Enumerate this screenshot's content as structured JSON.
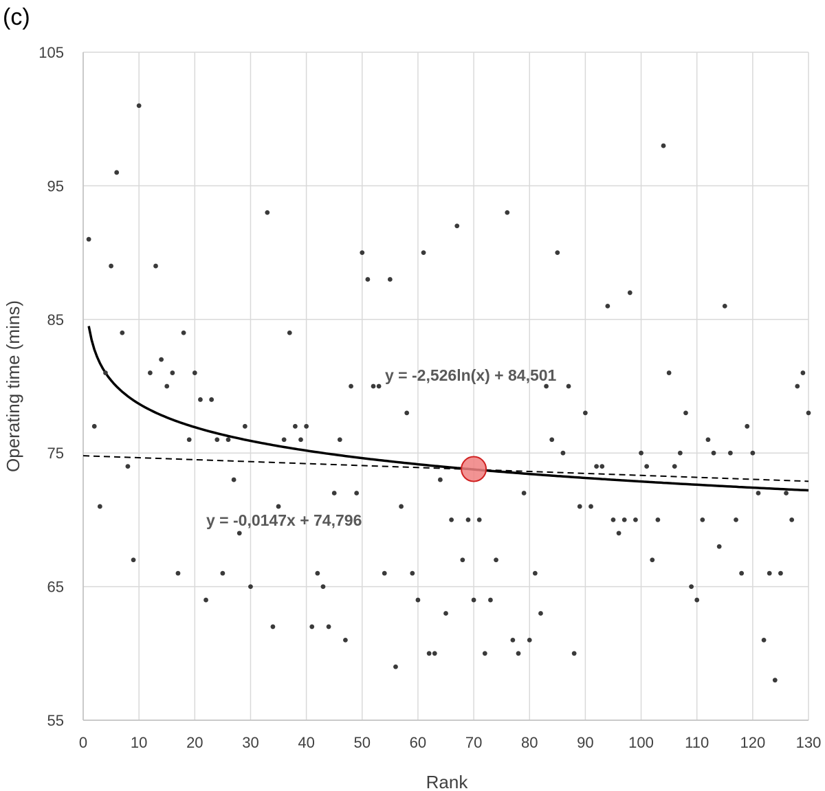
{
  "panel_label": "(c)",
  "chart_data": {
    "type": "scatter",
    "title": "",
    "xlabel": "Rank",
    "ylabel": "Operating time (mins)",
    "xlim": [
      0,
      130
    ],
    "ylim": [
      55,
      105
    ],
    "x_ticks": [
      0,
      10,
      20,
      30,
      40,
      50,
      60,
      70,
      80,
      90,
      100,
      110,
      120,
      130
    ],
    "y_ticks": [
      55,
      65,
      75,
      85,
      95,
      105
    ],
    "grid": true,
    "legend": "none",
    "colors": {
      "points": "#3a3a3a",
      "trend": "#000000",
      "highlight_fill": "#f08080",
      "highlight_stroke": "#d02020",
      "grid": "#d9d9d9"
    },
    "points": {
      "x": [
        1,
        2,
        3,
        4,
        5,
        6,
        7,
        8,
        9,
        10,
        12,
        13,
        14,
        15,
        16,
        17,
        18,
        19,
        20,
        21,
        22,
        23,
        24,
        25,
        26,
        27,
        28,
        29,
        30,
        33,
        34,
        35,
        36,
        37,
        38,
        39,
        40,
        41,
        42,
        43,
        44,
        45,
        46,
        47,
        48,
        49,
        50,
        51,
        52,
        53,
        54,
        55,
        56,
        57,
        58,
        59,
        60,
        61,
        62,
        63,
        64,
        65,
        66,
        67,
        68,
        69,
        70,
        71,
        72,
        73,
        74,
        76,
        77,
        78,
        79,
        80,
        81,
        82,
        83,
        84,
        85,
        86,
        87,
        88,
        89,
        90,
        91,
        92,
        93,
        94,
        95,
        96,
        97,
        98,
        99,
        100,
        101,
        102,
        103,
        104,
        105,
        106,
        107,
        108,
        109,
        110,
        111,
        112,
        113,
        114,
        115,
        116,
        117,
        118,
        119,
        120,
        121,
        122,
        123,
        124,
        125,
        126,
        127,
        128,
        129,
        130
      ],
      "y": [
        91,
        77,
        71,
        81,
        89,
        96,
        84,
        74,
        67,
        101,
        81,
        89,
        82,
        80,
        81,
        66,
        84,
        76,
        81,
        79,
        64,
        79,
        76,
        66,
        76,
        73,
        69,
        77,
        65,
        93,
        62,
        71,
        76,
        84,
        77,
        76,
        77,
        62,
        66,
        65,
        62,
        72,
        76,
        61,
        80,
        72,
        90,
        88,
        80,
        80,
        66,
        88,
        59,
        71,
        78,
        66,
        64,
        90,
        60,
        60,
        73,
        63,
        70,
        92,
        67,
        70,
        64,
        70,
        60,
        64,
        67,
        93,
        61,
        60,
        72,
        61,
        66,
        63,
        80,
        76,
        90,
        75,
        80,
        60,
        71,
        78,
        71,
        74,
        74,
        86,
        70,
        69,
        70,
        87,
        70,
        75,
        74,
        67,
        70,
        98,
        81,
        74,
        75,
        78,
        65,
        64,
        70,
        76,
        75,
        68,
        86,
        75,
        70,
        66,
        77,
        75,
        72,
        61,
        66,
        58,
        66,
        72,
        70,
        80,
        81,
        78
      ]
    },
    "trendlines": [
      {
        "kind": "logarithmic",
        "a": -2.526,
        "b": 84.501,
        "style": "solid",
        "equation": "y = -2,526ln(x) + 84,501"
      },
      {
        "kind": "linear",
        "slope": -0.0147,
        "intercept": 74.796,
        "style": "dashed",
        "equation": "y = -0,0147x + 74,796"
      }
    ],
    "highlight": {
      "x": 70,
      "y": 73.8
    }
  }
}
